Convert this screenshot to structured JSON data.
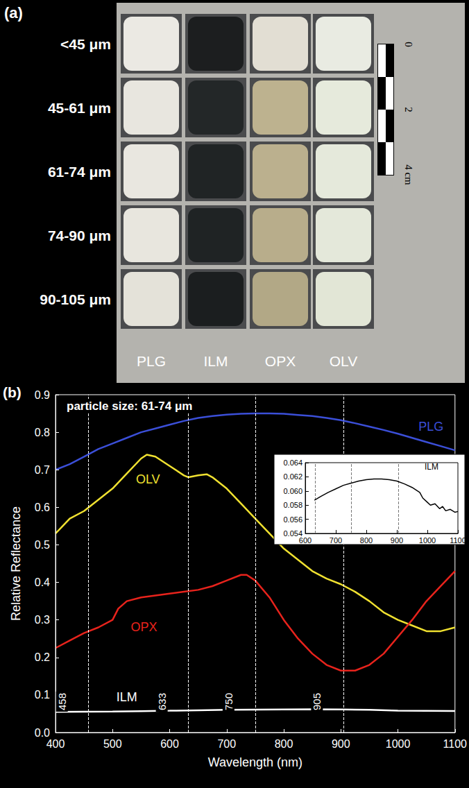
{
  "panel_a": {
    "label": "(a)",
    "row_labels": [
      "<45 μm",
      "45-61 μm",
      "61-74 μm",
      "74-90 μm",
      "90-105 μm"
    ],
    "column_labels": [
      "PLG",
      "ILM",
      "OPX",
      "OLV"
    ],
    "cell_colors": [
      [
        "#ebe9e3",
        "#1c1e1f",
        "#e2ded3",
        "#e9ebe2"
      ],
      [
        "#e8e6df",
        "#232728",
        "#bdb28f",
        "#e6eadc"
      ],
      [
        "#e9e7e0",
        "#202425",
        "#bbb08e",
        "#e5e9db"
      ],
      [
        "#e8e6de",
        "#1f2324",
        "#b8ad8b",
        "#e4e8da"
      ],
      [
        "#e4e2d9",
        "#1b1e1f",
        "#b2a886",
        "#e2e6d6"
      ]
    ],
    "scale_bar": [
      "0",
      "2",
      "4 cm"
    ]
  },
  "chart_data": [
    {
      "type": "line",
      "panel_label": "(b)",
      "title": "particle size: 61-74 μm",
      "x_label": "Wavelength (nm)",
      "y_label": "Relative Reflectance",
      "xlim": [
        400,
        1100
      ],
      "xticks": [
        400,
        500,
        600,
        700,
        800,
        900,
        1000,
        1100
      ],
      "ylim": [
        0,
        0.9
      ],
      "yticks": [
        {
          "value": 0,
          "label": "0.0"
        },
        0.1,
        0.2,
        0.3,
        0.4,
        0.5,
        0.6,
        0.7,
        0.8,
        0.9
      ],
      "grid": false,
      "vertical_lines": [
        458,
        633,
        750,
        905
      ],
      "series": [
        {
          "name": "PLG",
          "color": "#3b4fd8",
          "x": [
            400,
            425,
            450,
            475,
            500,
            525,
            550,
            575,
            600,
            625,
            650,
            675,
            700,
            725,
            750,
            775,
            800,
            825,
            850,
            875,
            900,
            925,
            950,
            975,
            1000,
            1025,
            1050,
            1075,
            1100
          ],
          "values": [
            0.7,
            0.715,
            0.735,
            0.755,
            0.77,
            0.785,
            0.8,
            0.81,
            0.82,
            0.83,
            0.838,
            0.843,
            0.847,
            0.849,
            0.85,
            0.85,
            0.849,
            0.846,
            0.843,
            0.838,
            0.832,
            0.824,
            0.815,
            0.806,
            0.796,
            0.785,
            0.774,
            0.763,
            0.752
          ]
        },
        {
          "name": "OLV",
          "color": "#f0e130",
          "x": [
            400,
            425,
            450,
            475,
            500,
            525,
            550,
            560,
            575,
            600,
            625,
            633,
            650,
            665,
            675,
            700,
            725,
            750,
            775,
            800,
            825,
            850,
            875,
            900,
            925,
            950,
            975,
            1000,
            1025,
            1050,
            1075,
            1100
          ],
          "values": [
            0.53,
            0.57,
            0.59,
            0.62,
            0.65,
            0.69,
            0.73,
            0.74,
            0.735,
            0.71,
            0.685,
            0.68,
            0.685,
            0.688,
            0.68,
            0.65,
            0.61,
            0.57,
            0.53,
            0.49,
            0.46,
            0.43,
            0.41,
            0.395,
            0.375,
            0.35,
            0.32,
            0.3,
            0.285,
            0.27,
            0.27,
            0.28
          ]
        },
        {
          "name": "OPX",
          "color": "#e8231c",
          "x": [
            400,
            425,
            450,
            475,
            500,
            510,
            525,
            550,
            575,
            600,
            625,
            650,
            675,
            700,
            725,
            735,
            750,
            775,
            800,
            825,
            850,
            875,
            900,
            925,
            950,
            975,
            1000,
            1025,
            1050,
            1075,
            1100
          ],
          "values": [
            0.225,
            0.245,
            0.265,
            0.28,
            0.3,
            0.33,
            0.35,
            0.36,
            0.365,
            0.37,
            0.375,
            0.38,
            0.39,
            0.405,
            0.42,
            0.42,
            0.405,
            0.36,
            0.3,
            0.25,
            0.21,
            0.18,
            0.165,
            0.165,
            0.18,
            0.21,
            0.255,
            0.3,
            0.35,
            0.39,
            0.43
          ]
        },
        {
          "name": "ILM",
          "color": "#ffffff",
          "x": [
            400,
            450,
            500,
            550,
            600,
            650,
            700,
            750,
            800,
            850,
            900,
            950,
            1000,
            1050,
            1100
          ],
          "values": [
            0.055,
            0.0555,
            0.056,
            0.057,
            0.058,
            0.0592,
            0.0603,
            0.0611,
            0.0616,
            0.0617,
            0.0614,
            0.0605,
            0.0584,
            0.0578,
            0.0571
          ]
        }
      ]
    },
    {
      "type": "line",
      "title": "ILM",
      "xlim": [
        600,
        1100
      ],
      "xticks": [
        600,
        700,
        800,
        900,
        1000,
        1100
      ],
      "ylim": [
        0.054,
        0.064
      ],
      "yticks": [
        0.054,
        0.056,
        0.058,
        {
          "value": 0.06,
          "label": "0.060"
        },
        0.062,
        0.064
      ],
      "grid": false,
      "vertical_lines": [
        633,
        750,
        905
      ],
      "series": [
        {
          "name": "ILM",
          "color": "#000000",
          "x": [
            630,
            650,
            675,
            700,
            725,
            750,
            775,
            800,
            825,
            850,
            875,
            900,
            925,
            950,
            975,
            985,
            1000,
            1010,
            1025,
            1040,
            1050,
            1060,
            1075,
            1090,
            1100
          ],
          "values": [
            0.0587,
            0.0592,
            0.0598,
            0.0603,
            0.0608,
            0.0611,
            0.0614,
            0.0616,
            0.0617,
            0.0617,
            0.0616,
            0.0614,
            0.061,
            0.0605,
            0.0598,
            0.059,
            0.0584,
            0.058,
            0.0582,
            0.0575,
            0.0578,
            0.0572,
            0.0574,
            0.057,
            0.0571
          ]
        }
      ]
    }
  ]
}
